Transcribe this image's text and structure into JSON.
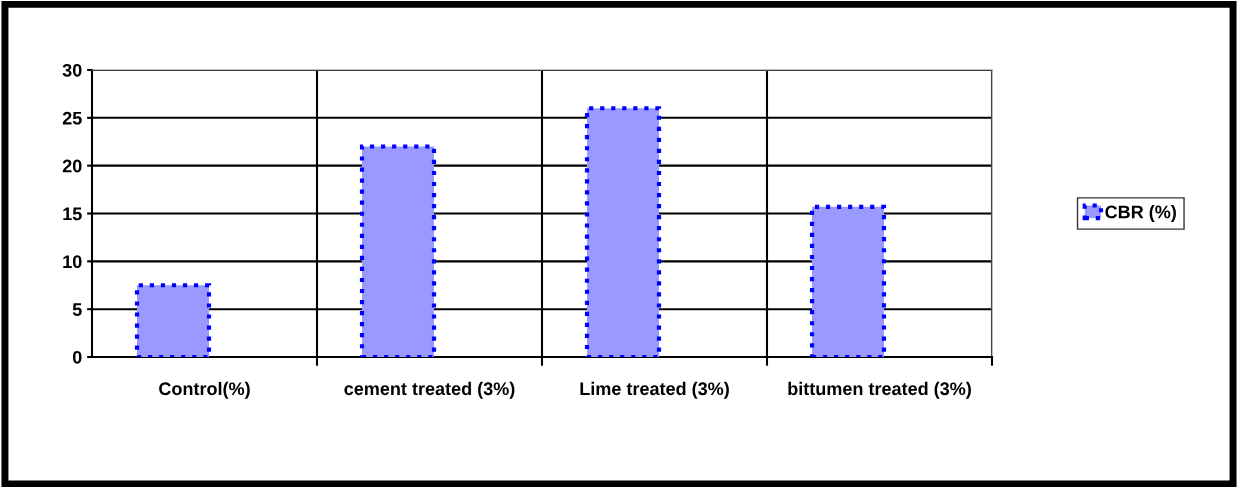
{
  "chart_data": {
    "type": "bar",
    "categories": [
      "Control(%)",
      "cement treated (3%)",
      "Lime treated (3%)",
      "bittumen treated (3%)"
    ],
    "series": [
      {
        "name": "CBR (%)",
        "color": "#9999ff",
        "values": [
          7.5,
          22,
          26,
          15.7
        ]
      }
    ],
    "ylim": [
      0,
      30
    ],
    "yticks": [
      0,
      5,
      10,
      15,
      20,
      25,
      30
    ],
    "grid": true,
    "legend": "right"
  }
}
